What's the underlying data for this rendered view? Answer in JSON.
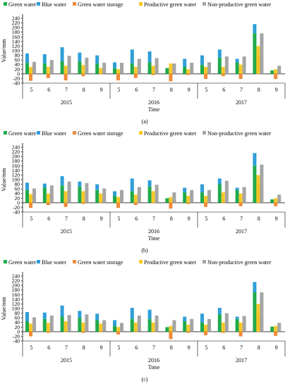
{
  "chart_data": [
    {
      "type": "bar",
      "panel_label": "(a)",
      "ylabel": "Value/mm",
      "xlabel": "Time",
      "ylim": [
        -40,
        240
      ],
      "yticks": [
        -40,
        -20,
        0,
        20,
        40,
        60,
        80,
        100,
        120,
        140,
        160,
        180,
        200,
        220,
        240
      ],
      "years": [
        "2015",
        "2016",
        "2017"
      ],
      "months": [
        "5",
        "6",
        "7",
        "8",
        "9"
      ],
      "legend": [
        "Green water",
        "Blue water",
        "Green water storage",
        "Productive green water",
        "Non-productive green water"
      ],
      "groups": [
        {
          "year": "2015",
          "month": "5",
          "green": 48,
          "blue": 40,
          "storage": -30,
          "productive": 30,
          "nonproductive": 52
        },
        {
          "year": "2015",
          "month": "6",
          "green": 45,
          "blue": 40,
          "storage": -18,
          "productive": 30,
          "nonproductive": 60
        },
        {
          "year": "2015",
          "month": "7",
          "green": 55,
          "blue": 60,
          "storage": -28,
          "productive": 35,
          "nonproductive": 78
        },
        {
          "year": "2015",
          "month": "8",
          "green": 55,
          "blue": 37,
          "storage": -10,
          "productive": 38,
          "nonproductive": 70
        },
        {
          "year": "2015",
          "month": "9",
          "green": 45,
          "blue": 35,
          "storage": -2,
          "productive": 25,
          "nonproductive": 48
        },
        {
          "year": "2016",
          "month": "5",
          "green": 25,
          "blue": 25,
          "storage": -28,
          "productive": 20,
          "nonproductive": 48
        },
        {
          "year": "2016",
          "month": "6",
          "green": 45,
          "blue": 60,
          "storage": -18,
          "productive": 30,
          "nonproductive": 65
        },
        {
          "year": "2016",
          "month": "7",
          "green": 50,
          "blue": 47,
          "storage": -5,
          "productive": 35,
          "nonproductive": 68
        },
        {
          "year": "2016",
          "month": "8",
          "green": 25,
          "blue": 0,
          "storage": -32,
          "productive": 45,
          "nonproductive": 45
        },
        {
          "year": "2016",
          "month": "9",
          "green": 30,
          "blue": 35,
          "storage": -5,
          "productive": 20,
          "nonproductive": 48
        },
        {
          "year": "2017",
          "month": "5",
          "green": 40,
          "blue": 40,
          "storage": -22,
          "productive": 30,
          "nonproductive": 50
        },
        {
          "year": "2017",
          "month": "6",
          "green": 70,
          "blue": 35,
          "storage": -10,
          "productive": 30,
          "nonproductive": 75
        },
        {
          "year": "2017",
          "month": "7",
          "green": 50,
          "blue": 15,
          "storage": -22,
          "productive": 40,
          "nonproductive": 75
        },
        {
          "year": "2017",
          "month": "8",
          "green": 175,
          "blue": 40,
          "storage": 80,
          "productive": 120,
          "nonproductive": 175
        },
        {
          "year": "2017",
          "month": "9",
          "green": 15,
          "blue": 0,
          "storage": -22,
          "productive": 20,
          "nonproductive": 35
        }
      ]
    },
    {
      "type": "bar",
      "panel_label": "(b)",
      "ylabel": "Value/mm",
      "xlabel": "Time",
      "ylim": [
        -40,
        240
      ],
      "yticks": [
        -40,
        -20,
        0,
        20,
        40,
        60,
        80,
        100,
        120,
        140,
        160,
        180,
        200,
        220,
        240
      ],
      "years": [
        "2015",
        "2016",
        "2017"
      ],
      "months": [
        "5",
        "6",
        "7",
        "8",
        "9"
      ],
      "legend": [
        "Green water",
        "Blue water",
        "Green water storage",
        "Productive green water",
        "Non-productive green water"
      ],
      "groups": [
        {
          "year": "2015",
          "month": "5",
          "green": 55,
          "blue": 32,
          "storage": -22,
          "productive": 38,
          "nonproductive": 62
        },
        {
          "year": "2015",
          "month": "6",
          "green": 65,
          "blue": 18,
          "storage": -10,
          "productive": 40,
          "nonproductive": 75
        },
        {
          "year": "2015",
          "month": "7",
          "green": 75,
          "blue": 40,
          "storage": -18,
          "productive": 50,
          "nonproductive": 92
        },
        {
          "year": "2015",
          "month": "8",
          "green": 70,
          "blue": 22,
          "storage": -5,
          "productive": 50,
          "nonproductive": 85
        },
        {
          "year": "2015",
          "month": "9",
          "green": 55,
          "blue": 25,
          "storage": -2,
          "productive": 40,
          "nonproductive": 62
        },
        {
          "year": "2016",
          "month": "5",
          "green": 30,
          "blue": 20,
          "storage": -22,
          "productive": 25,
          "nonproductive": 55
        },
        {
          "year": "2016",
          "month": "6",
          "green": 50,
          "blue": 55,
          "storage": -10,
          "productive": 35,
          "nonproductive": 68
        },
        {
          "year": "2016",
          "month": "7",
          "green": 70,
          "blue": 27,
          "storage": -2,
          "productive": 50,
          "nonproductive": 78
        },
        {
          "year": "2016",
          "month": "8",
          "green": 20,
          "blue": 0,
          "storage": -25,
          "productive": 25,
          "nonproductive": 45
        },
        {
          "year": "2016",
          "month": "9",
          "green": 45,
          "blue": 20,
          "storage": -5,
          "productive": 30,
          "nonproductive": 55
        },
        {
          "year": "2017",
          "month": "5",
          "green": 45,
          "blue": 35,
          "storage": -18,
          "productive": 30,
          "nonproductive": 55
        },
        {
          "year": "2017",
          "month": "6",
          "green": 80,
          "blue": 25,
          "storage": -2,
          "productive": 45,
          "nonproductive": 95
        },
        {
          "year": "2017",
          "month": "7",
          "green": 55,
          "blue": 10,
          "storage": -15,
          "productive": 40,
          "nonproductive": 68
        },
        {
          "year": "2017",
          "month": "8",
          "green": 160,
          "blue": 55,
          "storage": 78,
          "productive": 120,
          "nonproductive": 165
        },
        {
          "year": "2017",
          "month": "9",
          "green": 15,
          "blue": 0,
          "storage": -15,
          "productive": 20,
          "nonproductive": 35
        }
      ]
    },
    {
      "type": "bar",
      "panel_label": "(c)",
      "ylabel": "Value/mm",
      "xlabel": "Time",
      "ylim": [
        -40,
        240
      ],
      "yticks": [
        -40,
        -20,
        0,
        20,
        40,
        60,
        80,
        100,
        120,
        140,
        160,
        180,
        200,
        220,
        240
      ],
      "years": [
        "2015",
        "2016",
        "2017"
      ],
      "months": [
        "5",
        "6",
        "7",
        "8",
        "9"
      ],
      "legend": [
        "Green water",
        "Blue water",
        "Green water storage",
        "Productive green water",
        "Non-productive green water"
      ],
      "groups": [
        {
          "year": "2015",
          "month": "5",
          "green": 45,
          "blue": 40,
          "storage": -20,
          "productive": 35,
          "nonproductive": 62
        },
        {
          "year": "2015",
          "month": "6",
          "green": 55,
          "blue": 28,
          "storage": -5,
          "productive": 38,
          "nonproductive": 70
        },
        {
          "year": "2015",
          "month": "7",
          "green": 65,
          "blue": 48,
          "storage": -2,
          "productive": 45,
          "nonproductive": 72
        },
        {
          "year": "2015",
          "month": "8",
          "green": 60,
          "blue": 30,
          "storage": -5,
          "productive": 40,
          "nonproductive": 75
        },
        {
          "year": "2015",
          "month": "9",
          "green": 50,
          "blue": 28,
          "storage": -2,
          "productive": 35,
          "nonproductive": 50
        },
        {
          "year": "2016",
          "month": "5",
          "green": 25,
          "blue": 25,
          "storage": -12,
          "productive": 20,
          "nonproductive": 38
        },
        {
          "year": "2016",
          "month": "6",
          "green": 55,
          "blue": 48,
          "storage": -2,
          "productive": 40,
          "nonproductive": 70
        },
        {
          "year": "2016",
          "month": "7",
          "green": 55,
          "blue": 40,
          "storage": -2,
          "productive": 40,
          "nonproductive": 70
        },
        {
          "year": "2016",
          "month": "8",
          "green": 20,
          "blue": 0,
          "storage": -32,
          "productive": 25,
          "nonproductive": 50
        },
        {
          "year": "2016",
          "month": "9",
          "green": 45,
          "blue": 20,
          "storage": -5,
          "productive": 30,
          "nonproductive": 55
        },
        {
          "year": "2017",
          "month": "5",
          "green": 40,
          "blue": 38,
          "storage": -15,
          "productive": 30,
          "nonproductive": 55
        },
        {
          "year": "2017",
          "month": "6",
          "green": 75,
          "blue": 28,
          "storage": -5,
          "productive": 40,
          "nonproductive": 80
        },
        {
          "year": "2017",
          "month": "7",
          "green": 55,
          "blue": 10,
          "storage": -20,
          "productive": 40,
          "nonproductive": 68
        },
        {
          "year": "2017",
          "month": "8",
          "green": 170,
          "blue": 45,
          "storage": 75,
          "productive": 120,
          "nonproductive": 170
        },
        {
          "year": "2017",
          "month": "9",
          "green": 22,
          "blue": 0,
          "storage": -18,
          "productive": 25,
          "nonproductive": 38
        }
      ]
    }
  ],
  "colors": {
    "green": "#1faa4b",
    "blue": "#2f9fd7",
    "storage": "#ee8a3a",
    "productive": "#f7c51e",
    "nonproductive": "#a5a5a5"
  }
}
